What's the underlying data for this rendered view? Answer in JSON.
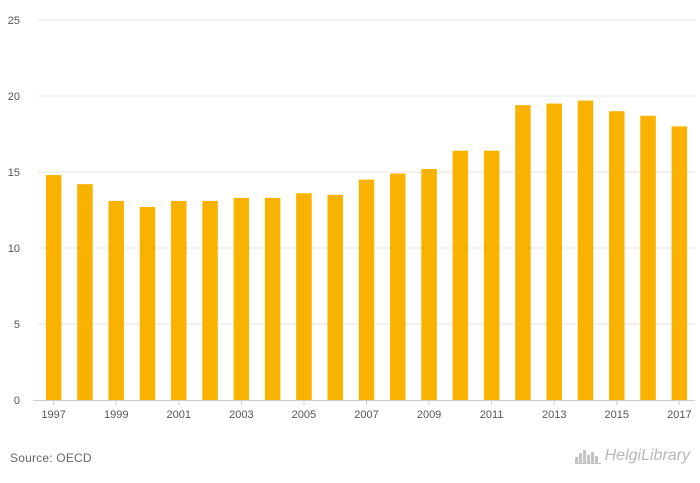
{
  "chart_data": {
    "type": "bar",
    "title": "",
    "xlabel": "",
    "ylabel": "",
    "categories": [
      "1997",
      "1998",
      "1999",
      "2000",
      "2001",
      "2002",
      "2003",
      "2004",
      "2005",
      "2006",
      "2007",
      "2008",
      "2009",
      "2010",
      "2011",
      "2012",
      "2013",
      "2014",
      "2015",
      "2016",
      "2017"
    ],
    "values": [
      14.8,
      14.2,
      13.1,
      12.7,
      13.1,
      13.1,
      13.3,
      13.3,
      13.6,
      13.5,
      14.5,
      14.9,
      15.2,
      16.4,
      16.4,
      19.4,
      19.5,
      19.7,
      19.0,
      18.7,
      18.0
    ],
    "x_tick_labels": [
      "1997",
      "",
      "1999",
      "",
      "2001",
      "",
      "2003",
      "",
      "2005",
      "",
      "2007",
      "",
      "2009",
      "",
      "2011",
      "",
      "2013",
      "",
      "2015",
      "",
      "2017"
    ],
    "ylim": [
      0,
      25
    ],
    "y_ticks": [
      0,
      5,
      10,
      15,
      20,
      25
    ],
    "grid": true,
    "colors": {
      "bar": "#f9b200",
      "grid": "#e6e6e6",
      "axis": "#cccccc"
    }
  },
  "footer": {
    "source": "Source: OECD",
    "logo_text": "HelgiLibrary",
    "logo_icon": "city-skyline-icon"
  }
}
